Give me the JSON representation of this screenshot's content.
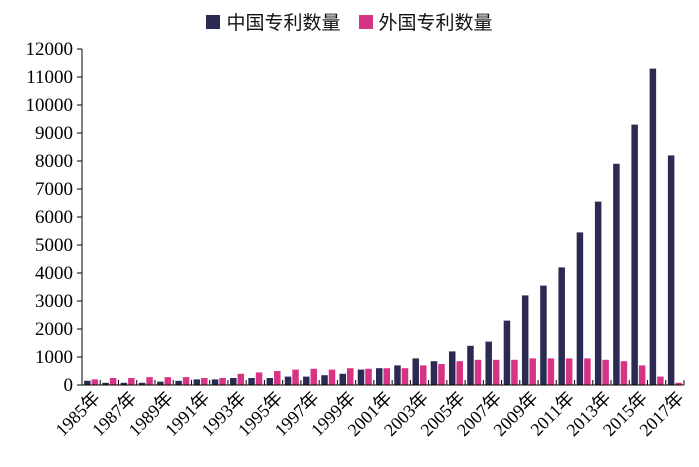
{
  "chart_data": {
    "type": "bar",
    "title": "",
    "xlabel": "",
    "ylabel": "",
    "ylim": [
      0,
      12000
    ],
    "yticks": [
      0,
      1000,
      2000,
      3000,
      4000,
      5000,
      6000,
      7000,
      8000,
      9000,
      10000,
      11000,
      12000
    ],
    "grid": false,
    "legend_position": "top",
    "categories": [
      "1985年",
      "1986年",
      "1987年",
      "1988年",
      "1989年",
      "1990年",
      "1991年",
      "1992年",
      "1993年",
      "1994年",
      "1995年",
      "1996年",
      "1997年",
      "1998年",
      "1999年",
      "2000年",
      "2001年",
      "2002年",
      "2003年",
      "2004年",
      "2005年",
      "2006年",
      "2007年",
      "2008年",
      "2009年",
      "2010年",
      "2011年",
      "2012年",
      "2013年",
      "2014年",
      "2015年",
      "2016年",
      "2017年"
    ],
    "tick_labels": [
      "1985年",
      "1987年",
      "1989年",
      "1991年",
      "1993年",
      "1995年",
      "1997年",
      "1999年",
      "2001年",
      "2003年",
      "2005年",
      "2007年",
      "2009年",
      "2011年",
      "2013年",
      "2015年",
      "2017年"
    ],
    "series": [
      {
        "name": "中国专利数量",
        "color": "#2b2a52",
        "values": [
          150,
          80,
          80,
          80,
          120,
          150,
          200,
          200,
          250,
          250,
          250,
          300,
          300,
          350,
          400,
          550,
          600,
          700,
          950,
          850,
          1200,
          1400,
          1550,
          2300,
          3200,
          3550,
          4200,
          5450,
          6550,
          7900,
          9300,
          11300,
          8200
        ]
      },
      {
        "name": "外国专利数量",
        "color": "#d63384",
        "values": [
          200,
          250,
          250,
          280,
          280,
          280,
          250,
          250,
          400,
          450,
          500,
          550,
          580,
          550,
          600,
          580,
          600,
          600,
          700,
          750,
          850,
          900,
          900,
          900,
          950,
          950,
          950,
          950,
          900,
          850,
          700,
          300,
          80
        ]
      }
    ]
  }
}
